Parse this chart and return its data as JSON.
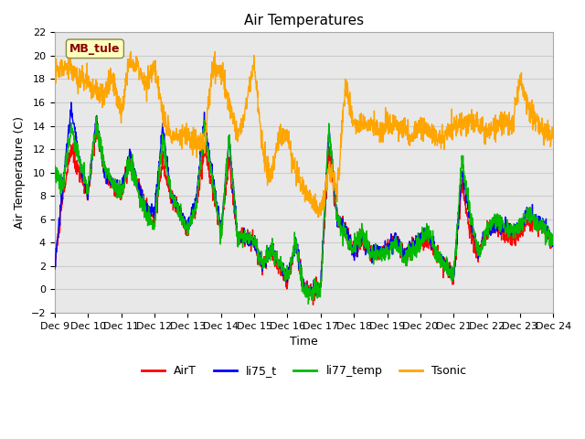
{
  "title": "Air Temperatures",
  "xlabel": "Time",
  "ylabel": "Air Temperature (C)",
  "ylim": [
    -2,
    22
  ],
  "xlim": [
    0,
    360
  ],
  "x_tick_labels": [
    "Dec 9",
    "Dec 10",
    "Dec 11",
    "Dec 12",
    "Dec 13",
    "Dec 14",
    "Dec 15",
    "Dec 16",
    "Dec 17",
    "Dec 18",
    "Dec 19",
    "Dec 20",
    "Dec 21",
    "Dec 22",
    "Dec 23",
    "Dec 24"
  ],
  "x_tick_positions": [
    0,
    24,
    48,
    72,
    96,
    120,
    144,
    168,
    192,
    216,
    240,
    264,
    288,
    312,
    336,
    360
  ],
  "annotation_text": "MB_tule",
  "annotation_color": "#8B0000",
  "annotation_bg": "#FFFFC0",
  "grid_color": "#CCCCCC",
  "bg_color": "#E8E8E8",
  "line_colors": {
    "AirT": "#FF0000",
    "li75_t": "#0000FF",
    "li77_temp": "#00BB00",
    "Tsonic": "#FFA500"
  },
  "line_width": 1.0,
  "legend_items": [
    "AirT",
    "li75_t",
    "li77_temp",
    "Tsonic"
  ]
}
